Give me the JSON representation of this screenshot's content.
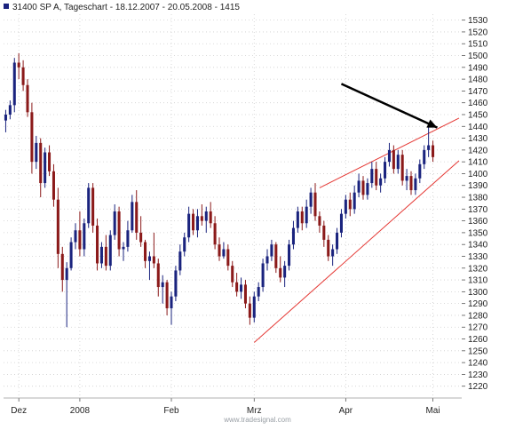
{
  "header": {
    "title": "31400  SP A, Tageschart - 18.12.2007 - 20.05.2008 - 1415",
    "marker_color": "#1a237e"
  },
  "watermark": "www.tradesignal.com",
  "chart_data": {
    "type": "candlestick",
    "title": "31400  SP A, Tageschart - 18.12.2007 - 20.05.2008 - 1415",
    "ylim": [
      1210,
      1535
    ],
    "y_ticks": [
      1530,
      1520,
      1510,
      1500,
      1490,
      1480,
      1470,
      1460,
      1450,
      1440,
      1430,
      1420,
      1410,
      1400,
      1390,
      1380,
      1370,
      1360,
      1350,
      1340,
      1330,
      1320,
      1310,
      1300,
      1290,
      1280,
      1270,
      1260,
      1250,
      1240,
      1230,
      1220
    ],
    "y_axis_side": "right",
    "grid": true,
    "x_tick_labels": [
      {
        "label": "Dez",
        "index": 3
      },
      {
        "label": "2008",
        "index": 17
      },
      {
        "label": "Feb",
        "index": 38
      },
      {
        "label": "Mrz",
        "index": 57
      },
      {
        "label": "Apr",
        "index": 78
      },
      {
        "label": "Mai",
        "index": 98
      }
    ],
    "colors": {
      "up": "#1a237e",
      "down": "#8b1a1a",
      "trendline": "#e53935",
      "arrow": "#000000"
    },
    "candles": [
      [
        1445,
        1454,
        1435,
        1450
      ],
      [
        1450,
        1462,
        1446,
        1458
      ],
      [
        1458,
        1498,
        1452,
        1494
      ],
      [
        1494,
        1502,
        1480,
        1490
      ],
      [
        1490,
        1496,
        1470,
        1475
      ],
      [
        1475,
        1480,
        1448,
        1452
      ],
      [
        1452,
        1460,
        1400,
        1410
      ],
      [
        1410,
        1432,
        1404,
        1426
      ],
      [
        1426,
        1430,
        1380,
        1392
      ],
      [
        1392,
        1422,
        1388,
        1418
      ],
      [
        1418,
        1424,
        1398,
        1402
      ],
      [
        1402,
        1408,
        1372,
        1378
      ],
      [
        1378,
        1388,
        1320,
        1332
      ],
      [
        1332,
        1338,
        1300,
        1310
      ],
      [
        1310,
        1325,
        1270,
        1320
      ],
      [
        1320,
        1346,
        1318,
        1342
      ],
      [
        1342,
        1358,
        1336,
        1352
      ],
      [
        1352,
        1368,
        1330,
        1336
      ],
      [
        1336,
        1362,
        1330,
        1358
      ],
      [
        1358,
        1392,
        1354,
        1388
      ],
      [
        1388,
        1392,
        1350,
        1356
      ],
      [
        1356,
        1362,
        1318,
        1324
      ],
      [
        1324,
        1342,
        1320,
        1338
      ],
      [
        1338,
        1348,
        1318,
        1322
      ],
      [
        1322,
        1352,
        1318,
        1348
      ],
      [
        1348,
        1374,
        1344,
        1368
      ],
      [
        1368,
        1372,
        1330,
        1336
      ],
      [
        1336,
        1342,
        1326,
        1338
      ],
      [
        1338,
        1360,
        1334,
        1352
      ],
      [
        1352,
        1382,
        1350,
        1376
      ],
      [
        1376,
        1386,
        1344,
        1350
      ],
      [
        1350,
        1364,
        1338,
        1342
      ],
      [
        1342,
        1344,
        1320,
        1326
      ],
      [
        1326,
        1334,
        1310,
        1330
      ],
      [
        1330,
        1350,
        1320,
        1324
      ],
      [
        1324,
        1328,
        1296,
        1304
      ],
      [
        1304,
        1314,
        1290,
        1308
      ],
      [
        1308,
        1310,
        1280,
        1286
      ],
      [
        1286,
        1300,
        1272,
        1296
      ],
      [
        1296,
        1322,
        1292,
        1318
      ],
      [
        1318,
        1340,
        1314,
        1334
      ],
      [
        1334,
        1350,
        1330,
        1346
      ],
      [
        1346,
        1372,
        1342,
        1366
      ],
      [
        1366,
        1370,
        1348,
        1352
      ],
      [
        1352,
        1370,
        1346,
        1364
      ],
      [
        1364,
        1374,
        1356,
        1360
      ],
      [
        1360,
        1372,
        1350,
        1368
      ],
      [
        1368,
        1376,
        1354,
        1358
      ],
      [
        1358,
        1364,
        1336,
        1340
      ],
      [
        1340,
        1346,
        1326,
        1330
      ],
      [
        1330,
        1342,
        1328,
        1336
      ],
      [
        1336,
        1340,
        1318,
        1322
      ],
      [
        1322,
        1326,
        1304,
        1308
      ],
      [
        1308,
        1316,
        1296,
        1300
      ],
      [
        1300,
        1312,
        1294,
        1306
      ],
      [
        1306,
        1310,
        1286,
        1290
      ],
      [
        1290,
        1296,
        1272,
        1278
      ],
      [
        1278,
        1300,
        1274,
        1296
      ],
      [
        1296,
        1308,
        1292,
        1304
      ],
      [
        1304,
        1328,
        1300,
        1324
      ],
      [
        1324,
        1336,
        1318,
        1330
      ],
      [
        1330,
        1344,
        1326,
        1340
      ],
      [
        1340,
        1342,
        1316,
        1320
      ],
      [
        1320,
        1330,
        1308,
        1312
      ],
      [
        1312,
        1326,
        1304,
        1322
      ],
      [
        1322,
        1344,
        1318,
        1340
      ],
      [
        1340,
        1360,
        1336,
        1354
      ],
      [
        1354,
        1372,
        1350,
        1368
      ],
      [
        1368,
        1372,
        1352,
        1358
      ],
      [
        1358,
        1378,
        1354,
        1372
      ],
      [
        1372,
        1388,
        1366,
        1384
      ],
      [
        1384,
        1392,
        1360,
        1364
      ],
      [
        1364,
        1368,
        1350,
        1356
      ],
      [
        1356,
        1360,
        1338,
        1344
      ],
      [
        1344,
        1348,
        1326,
        1330
      ],
      [
        1330,
        1340,
        1322,
        1336
      ],
      [
        1336,
        1354,
        1332,
        1350
      ],
      [
        1350,
        1370,
        1346,
        1366
      ],
      [
        1366,
        1382,
        1362,
        1378
      ],
      [
        1378,
        1384,
        1364,
        1370
      ],
      [
        1370,
        1390,
        1366,
        1384
      ],
      [
        1384,
        1400,
        1380,
        1394
      ],
      [
        1394,
        1398,
        1378,
        1382
      ],
      [
        1382,
        1396,
        1378,
        1392
      ],
      [
        1392,
        1410,
        1388,
        1404
      ],
      [
        1404,
        1410,
        1386,
        1390
      ],
      [
        1390,
        1400,
        1384,
        1396
      ],
      [
        1396,
        1414,
        1392,
        1410
      ],
      [
        1410,
        1426,
        1406,
        1420
      ],
      [
        1420,
        1424,
        1400,
        1404
      ],
      [
        1404,
        1420,
        1400,
        1416
      ],
      [
        1416,
        1420,
        1390,
        1394
      ],
      [
        1394,
        1404,
        1386,
        1398
      ],
      [
        1398,
        1402,
        1382,
        1386
      ],
      [
        1386,
        1400,
        1382,
        1396
      ],
      [
        1396,
        1412,
        1392,
        1408
      ],
      [
        1408,
        1424,
        1404,
        1420
      ],
      [
        1420,
        1440,
        1414,
        1424
      ],
      [
        1424,
        1428,
        1410,
        1414
      ]
    ],
    "trendlines": [
      {
        "from": [
          57,
          1257
        ],
        "to": [
          104,
          1411
        ]
      },
      {
        "from": [
          72,
          1388
        ],
        "to": [
          104,
          1447
        ]
      }
    ],
    "annotations": [
      {
        "type": "arrow",
        "from": [
          77,
          1476
        ],
        "to": [
          99,
          1439
        ]
      }
    ]
  }
}
